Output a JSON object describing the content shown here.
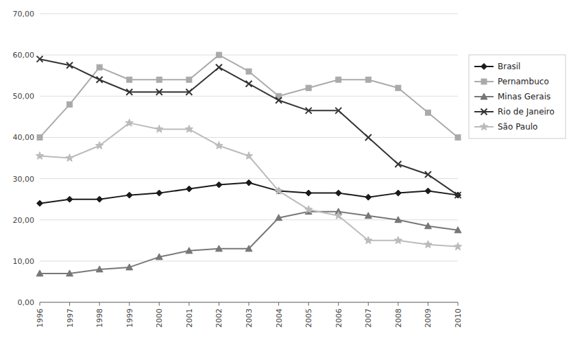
{
  "chart_data": {
    "type": "line",
    "x": [
      1996,
      1997,
      1998,
      1999,
      2000,
      2001,
      2002,
      2003,
      2004,
      2005,
      2006,
      2007,
      2008,
      2009,
      2010
    ],
    "xlim": [
      1996,
      2010
    ],
    "xticks": [
      1996,
      1997,
      1998,
      1999,
      2000,
      2001,
      2002,
      2003,
      2004,
      2005,
      2006,
      2007,
      2008,
      2009,
      2010
    ],
    "ylim": [
      0,
      70
    ],
    "yticks": [
      {
        "value": 0,
        "label": "0,00"
      },
      {
        "value": 10,
        "label": "10,00"
      },
      {
        "value": 20,
        "label": "20,00"
      },
      {
        "value": 30,
        "label": "30,00"
      },
      {
        "value": 40,
        "label": "40,00"
      },
      {
        "value": 50,
        "label": "50,00"
      },
      {
        "value": 60,
        "label": "60,00"
      },
      {
        "value": 70,
        "label": "70,00"
      }
    ],
    "grid": true,
    "legend": "right",
    "series": [
      {
        "name": "Brasil",
        "color": "#1a1a1a",
        "marker": "diamond",
        "values": [
          24.0,
          25.0,
          25.0,
          26.0,
          26.5,
          27.5,
          28.5,
          29.0,
          27.0,
          26.5,
          26.5,
          25.5,
          26.5,
          27.0,
          26.0
        ]
      },
      {
        "name": "Pernambuco",
        "color": "#aaaaaa",
        "marker": "square",
        "values": [
          40.0,
          48.0,
          57.0,
          54.0,
          54.0,
          54.0,
          60.0,
          56.0,
          50.0,
          52.0,
          54.0,
          54.0,
          52.0,
          46.0,
          40.0
        ]
      },
      {
        "name": "Minas Gerais",
        "color": "#777777",
        "marker": "triangle",
        "values": [
          7.0,
          7.0,
          8.0,
          8.5,
          11.0,
          12.5,
          13.0,
          13.0,
          20.5,
          22.0,
          22.0,
          21.0,
          20.0,
          18.5,
          17.5
        ]
      },
      {
        "name": "Rio de Janeiro",
        "color": "#333333",
        "marker": "x",
        "values": [
          59.0,
          57.5,
          54.0,
          51.0,
          51.0,
          51.0,
          57.0,
          53.0,
          49.0,
          46.5,
          46.5,
          40.0,
          33.5,
          31.0,
          26.0
        ]
      },
      {
        "name": "São Paulo",
        "color": "#bbbbbb",
        "marker": "star",
        "values": [
          35.5,
          35.0,
          38.0,
          43.5,
          42.0,
          42.0,
          38.0,
          35.5,
          27.0,
          22.5,
          21.0,
          15.0,
          15.0,
          14.0,
          13.5
        ]
      }
    ]
  }
}
